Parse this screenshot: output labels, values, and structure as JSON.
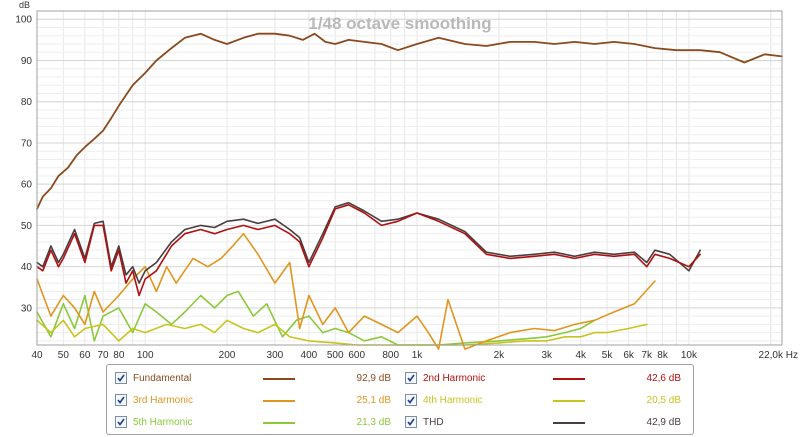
{
  "chart_data": {
    "type": "line",
    "title": "1/48 octave smoothing",
    "ylabel": "dB",
    "x_scale": "log",
    "xlim": [
      40,
      22000
    ],
    "ylim": [
      21,
      102
    ],
    "y_ticks": [
      30,
      40,
      50,
      60,
      70,
      80,
      90,
      100
    ],
    "y_tick_labels": [
      "30",
      "40",
      "50",
      "60",
      "70",
      "80",
      "90",
      "100"
    ],
    "x_ticks": [
      40,
      50,
      60,
      70,
      80,
      100,
      200,
      300,
      400,
      500,
      600,
      800,
      1000,
      2000,
      3000,
      4000,
      5000,
      6000,
      7000,
      8000,
      10000,
      22000
    ],
    "x_tick_labels": [
      "40",
      "50",
      "60",
      "70",
      "80",
      "100",
      "200",
      "300",
      "400",
      "500",
      "600",
      "800",
      "1k",
      "2k",
      "3k",
      "4k",
      "5k",
      "6k",
      "7k",
      "8k",
      "10k",
      "22,0k Hz"
    ],
    "grid": true,
    "series": [
      {
        "name": "Fundamental",
        "color": "#8b4a1e",
        "value_label": "92,9 dB",
        "x": [
          40,
          42,
          45,
          48,
          52,
          56,
          60,
          65,
          70,
          75,
          80,
          90,
          100,
          110,
          125,
          140,
          160,
          180,
          200,
          230,
          260,
          300,
          340,
          380,
          420,
          460,
          500,
          560,
          640,
          740,
          850,
          1000,
          1200,
          1500,
          1800,
          2200,
          2700,
          3200,
          3800,
          4500,
          5300,
          6300,
          7500,
          9000,
          11000,
          13000,
          16000,
          19000,
          22000
        ],
        "y": [
          54,
          57,
          59,
          62,
          64,
          67,
          69,
          71,
          73,
          76,
          79,
          84,
          87,
          90,
          93,
          95.5,
          96.5,
          95,
          94,
          95.5,
          96.5,
          96.5,
          96,
          95,
          96.5,
          94.5,
          94,
          95,
          94.5,
          94,
          92.5,
          94,
          95.5,
          94,
          93.5,
          94.5,
          94.5,
          94,
          94.5,
          94,
          94.5,
          94,
          93,
          92.5,
          92.5,
          92,
          89.5,
          91.5,
          91
        ]
      },
      {
        "name": "2nd Harmonic",
        "color": "#b01010",
        "value_label": "42,6 dB",
        "x": [
          40,
          42,
          45,
          48,
          50,
          55,
          60,
          65,
          70,
          75,
          80,
          85,
          90,
          95,
          100,
          110,
          125,
          140,
          160,
          180,
          200,
          230,
          260,
          300,
          340,
          370,
          400,
          450,
          500,
          560,
          640,
          740,
          850,
          1000,
          1200,
          1500,
          1800,
          2200,
          2700,
          3200,
          3800,
          4500,
          5300,
          6300,
          7000,
          7500,
          8500,
          10000,
          11000
        ],
        "y": [
          40,
          39,
          44,
          40,
          42,
          48,
          41,
          50,
          50,
          39,
          44,
          36,
          39,
          33,
          37,
          39,
          45,
          48,
          49,
          48,
          49,
          50,
          49,
          50,
          48,
          46,
          40,
          47,
          54,
          55,
          53,
          50,
          51,
          53,
          51,
          48,
          43,
          42,
          42.5,
          43,
          42,
          43,
          42.5,
          43,
          40,
          43,
          42,
          40,
          43
        ]
      },
      {
        "name": "3rd Harmonic",
        "color": "#e0961e",
        "value_label": "25,1 dB",
        "x": [
          40,
          45,
          50,
          55,
          60,
          65,
          70,
          80,
          90,
          100,
          110,
          120,
          130,
          150,
          170,
          190,
          210,
          230,
          260,
          300,
          340,
          370,
          400,
          450,
          500,
          560,
          640,
          740,
          850,
          1000,
          1100,
          1200,
          1300,
          1500,
          1800,
          2200,
          2700,
          3200,
          3800,
          4500,
          5300,
          6300,
          7500
        ],
        "y": [
          37,
          28,
          33,
          30,
          26,
          34,
          29,
          33,
          37,
          40,
          34,
          40,
          36,
          42,
          40,
          42,
          45,
          48,
          43,
          36,
          41,
          25,
          33,
          26,
          30,
          24,
          28,
          26,
          24,
          28,
          24,
          20,
          32,
          20,
          22,
          24,
          25,
          24.5,
          26,
          27,
          29,
          31,
          36.5
        ]
      },
      {
        "name": "4th Harmonic",
        "color": "#c8c41e",
        "value_label": "20,5 dB",
        "x": [
          40,
          45,
          50,
          55,
          60,
          70,
          80,
          90,
          100,
          120,
          140,
          160,
          180,
          200,
          230,
          260,
          300,
          340,
          400,
          500,
          600,
          800,
          1000,
          1500,
          2000,
          2500,
          3000,
          3500,
          4000,
          4500,
          5000,
          6000,
          7000
        ],
        "y": [
          27,
          24,
          27,
          23,
          25,
          26,
          22,
          25,
          24,
          26,
          25,
          26,
          24,
          27,
          25,
          24,
          26,
          23,
          22,
          21.5,
          21,
          21,
          21,
          21,
          21.5,
          22,
          22,
          23,
          23,
          24,
          24,
          25,
          26
        ]
      },
      {
        "name": "5th Harmonic",
        "color": "#8cc83c",
        "value_label": "21,3 dB",
        "x": [
          40,
          45,
          50,
          55,
          60,
          65,
          70,
          80,
          90,
          100,
          110,
          125,
          140,
          160,
          180,
          200,
          220,
          250,
          280,
          320,
          360,
          400,
          450,
          500,
          560,
          640,
          740,
          850,
          1000,
          1200,
          1500,
          2000,
          2500,
          3000,
          3500,
          4000,
          4500
        ],
        "y": [
          29,
          23,
          31,
          25,
          33,
          22,
          28,
          30,
          24,
          31,
          29,
          26,
          29,
          33,
          30,
          33,
          34,
          28,
          31,
          23,
          27,
          28,
          24,
          25,
          24,
          22,
          23,
          21,
          21,
          21,
          21.5,
          22,
          22.5,
          23,
          24,
          25,
          27
        ]
      },
      {
        "name": "THD",
        "color": "#4a3e3e",
        "value_label": "42,9 dB",
        "x": [
          40,
          42,
          45,
          48,
          50,
          55,
          60,
          65,
          70,
          75,
          80,
          85,
          90,
          95,
          100,
          110,
          125,
          140,
          160,
          180,
          200,
          230,
          260,
          300,
          340,
          370,
          400,
          450,
          500,
          560,
          640,
          740,
          850,
          1000,
          1200,
          1500,
          1800,
          2200,
          2700,
          3200,
          3800,
          4500,
          5300,
          6300,
          7000,
          7500,
          8500,
          10000,
          11000
        ],
        "y": [
          41,
          40,
          45,
          41,
          43,
          49,
          42,
          50.5,
          51,
          40,
          45,
          38,
          40,
          36,
          39,
          41,
          46,
          49,
          50,
          49.5,
          51,
          51.5,
          50.5,
          51.5,
          49,
          47,
          41,
          48,
          54.5,
          55.5,
          53.5,
          51,
          51.5,
          53,
          51.5,
          48.5,
          43.5,
          42.5,
          43,
          43.5,
          42.5,
          43.5,
          43,
          43.5,
          41,
          44,
          43,
          39,
          44
        ]
      }
    ]
  },
  "legend": [
    {
      "label": "Fundamental",
      "value": "92,9 dB",
      "checked": true
    },
    {
      "label": "2nd Harmonic",
      "value": "42,6 dB",
      "checked": true
    },
    {
      "label": "3rd Harmonic",
      "value": "25,1 dB",
      "checked": true
    },
    {
      "label": "4th Harmonic",
      "value": "20,5 dB",
      "checked": true
    },
    {
      "label": "5th Harmonic",
      "value": "21,3 dB",
      "checked": true
    },
    {
      "label": "THD",
      "value": "42,9 dB",
      "checked": true
    }
  ]
}
